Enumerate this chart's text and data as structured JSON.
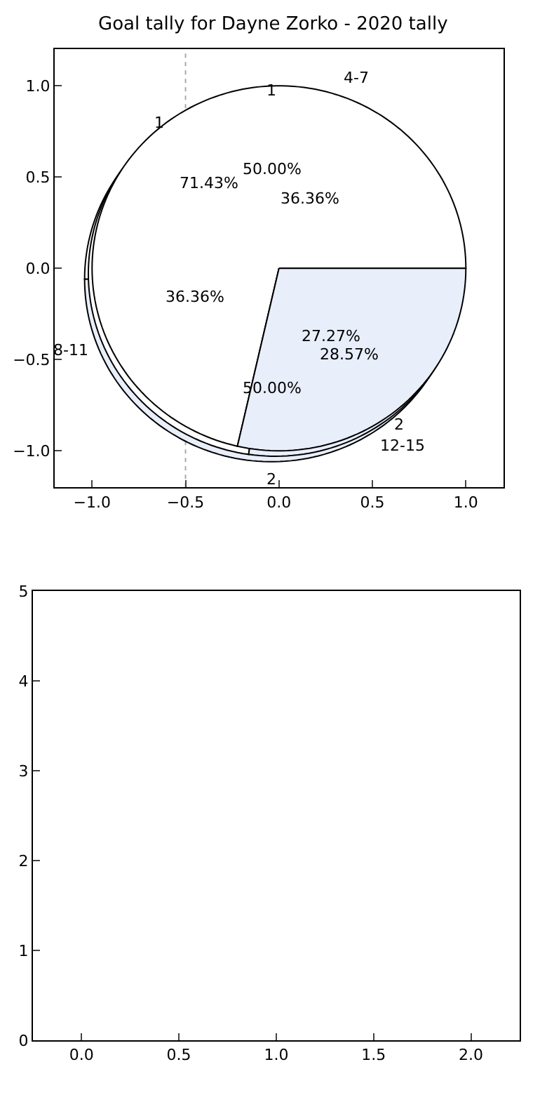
{
  "chart_data": [
    {
      "type": "scatter",
      "title": "Goal tally for Dayne Zorko - 2020 tally",
      "xlim": [
        -1.2,
        1.2
      ],
      "ylim": [
        -1.2,
        1.2
      ],
      "xticks": [
        {
          "value": -1,
          "label": "−1.0"
        },
        {
          "value": -0.5,
          "label": "−0.5"
        },
        {
          "value": 0,
          "label": "0.0"
        },
        {
          "value": 0.5,
          "label": "0.5"
        },
        {
          "value": 1,
          "label": "1.0"
        }
      ],
      "yticks": [
        {
          "value": -1,
          "label": "−1.0"
        },
        {
          "value": -0.5,
          "label": "−0.5"
        },
        {
          "value": 0,
          "label": "0.0"
        },
        {
          "value": 0.5,
          "label": "0.5"
        },
        {
          "value": 1,
          "label": "1.0"
        }
      ],
      "ref_lines": [
        {
          "axis": "x",
          "value": -0.5,
          "line_style": "dotted",
          "color": "#aaaaaa"
        }
      ]
    },
    {
      "type": "pie",
      "categories": [
        "1",
        "2"
      ],
      "values": [
        71.43,
        28.57
      ],
      "value_labels": [
        "71.43%",
        "28.57%"
      ],
      "colors": [
        "#ffffff",
        "#e8eefa"
      ]
    },
    {
      "type": "pie",
      "categories": [
        "4-7",
        "8-11",
        "12-15"
      ],
      "values": [
        36.36,
        36.36,
        27.27
      ],
      "value_labels": [
        "36.36%",
        "36.36%",
        "27.27%"
      ],
      "colors": [
        "#ffffff",
        "#ffffff",
        "#e8eefa"
      ]
    },
    {
      "type": "pie",
      "categories": [
        "1",
        "2"
      ],
      "values": [
        50,
        50
      ],
      "value_labels": [
        "50.00%",
        "50.00%"
      ],
      "colors": [
        "#ffffff",
        "#e8eefa"
      ]
    },
    {
      "type": "scatter",
      "xlim": [
        -0.25,
        2.25
      ],
      "ylim": [
        0,
        5
      ],
      "xticks": [
        {
          "value": 0,
          "label": "0.0"
        },
        {
          "value": 0.5,
          "label": "0.5"
        },
        {
          "value": 1,
          "label": "1.0"
        },
        {
          "value": 1.5,
          "label": "1.5"
        },
        {
          "value": 2,
          "label": "2.0"
        }
      ],
      "yticks": [
        0,
        1,
        2,
        3,
        4,
        5
      ]
    }
  ]
}
